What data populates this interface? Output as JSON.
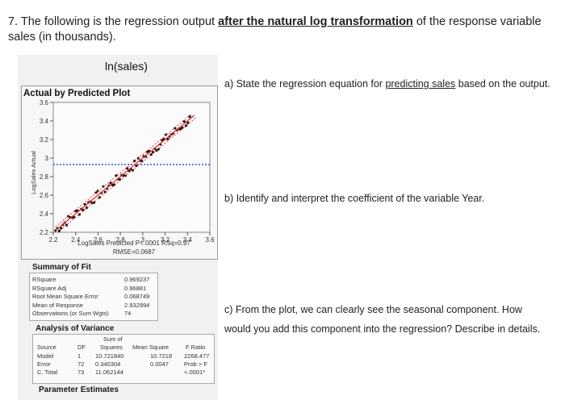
{
  "question": {
    "prefix": "7. The following is the regression output ",
    "emphasis": "after the natural log transformation",
    "suffix": " of the response variable sales (in thousands)."
  },
  "panel_title": "ln(sales)",
  "plot": {
    "heading": "Actual by Predicted Plot",
    "ylabel": "LogSales Actual",
    "caption_line1": "LogSales Predicted P<.0001 RSq=0.97",
    "caption_line2": "RMSE=0.0687",
    "y_ticks": [
      "3.6",
      "3.4",
      "3.2",
      "3",
      "2.8",
      "2.6",
      "2.4",
      "2.2"
    ],
    "x_ticks": [
      "2.2",
      "2.4",
      "2.6",
      "2.8",
      "3",
      "3.2",
      "3.4",
      "3.6"
    ],
    "mean_line_value": 2.93,
    "fit_color": "#e23b3b",
    "mean_color": "#3a55d6"
  },
  "summary_of_fit": {
    "title": "Summary of Fit",
    "rows": [
      {
        "label": "RSquare",
        "value": "0.969237"
      },
      {
        "label": "RSquare Adj",
        "value": "0.96881"
      },
      {
        "label": "Root Mean Square Error",
        "value": "0.068749"
      },
      {
        "label": "Mean of Response",
        "value": "2.932994"
      },
      {
        "label": "Observations (or Sum Wgts)",
        "value": "74"
      }
    ]
  },
  "anova": {
    "title": "Analysis of Variance",
    "sum_of": "Sum of",
    "headers": {
      "source": "Source",
      "df": "DF",
      "ss": "Squares",
      "ms": "Mean Square",
      "f": "F Ratio"
    },
    "rows": [
      {
        "source": "Model",
        "df": "1",
        "ss": "10.721840",
        "ms": "10.7218",
        "f": "2268.477"
      },
      {
        "source": "Error",
        "df": "72",
        "ss": "0.340304",
        "ms": "0.0047",
        "f": "Prob > F"
      },
      {
        "source": "C. Total",
        "df": "73",
        "ss": "11.062144",
        "ms": "",
        "f": "<.0001*"
      }
    ]
  },
  "parameter_estimates": "Parameter Estimates",
  "questions": {
    "a_prefix": "a) State the regression equation for ",
    "a_emph": "predicting sales",
    "a_suffix": " based on the output.",
    "b": "b) Identify and interpret the coefficient of the variable Year.",
    "c1": "c) From the plot, we can clearly see the seasonal component. How",
    "c2": "would you add this component into the regression? Describe in details."
  }
}
